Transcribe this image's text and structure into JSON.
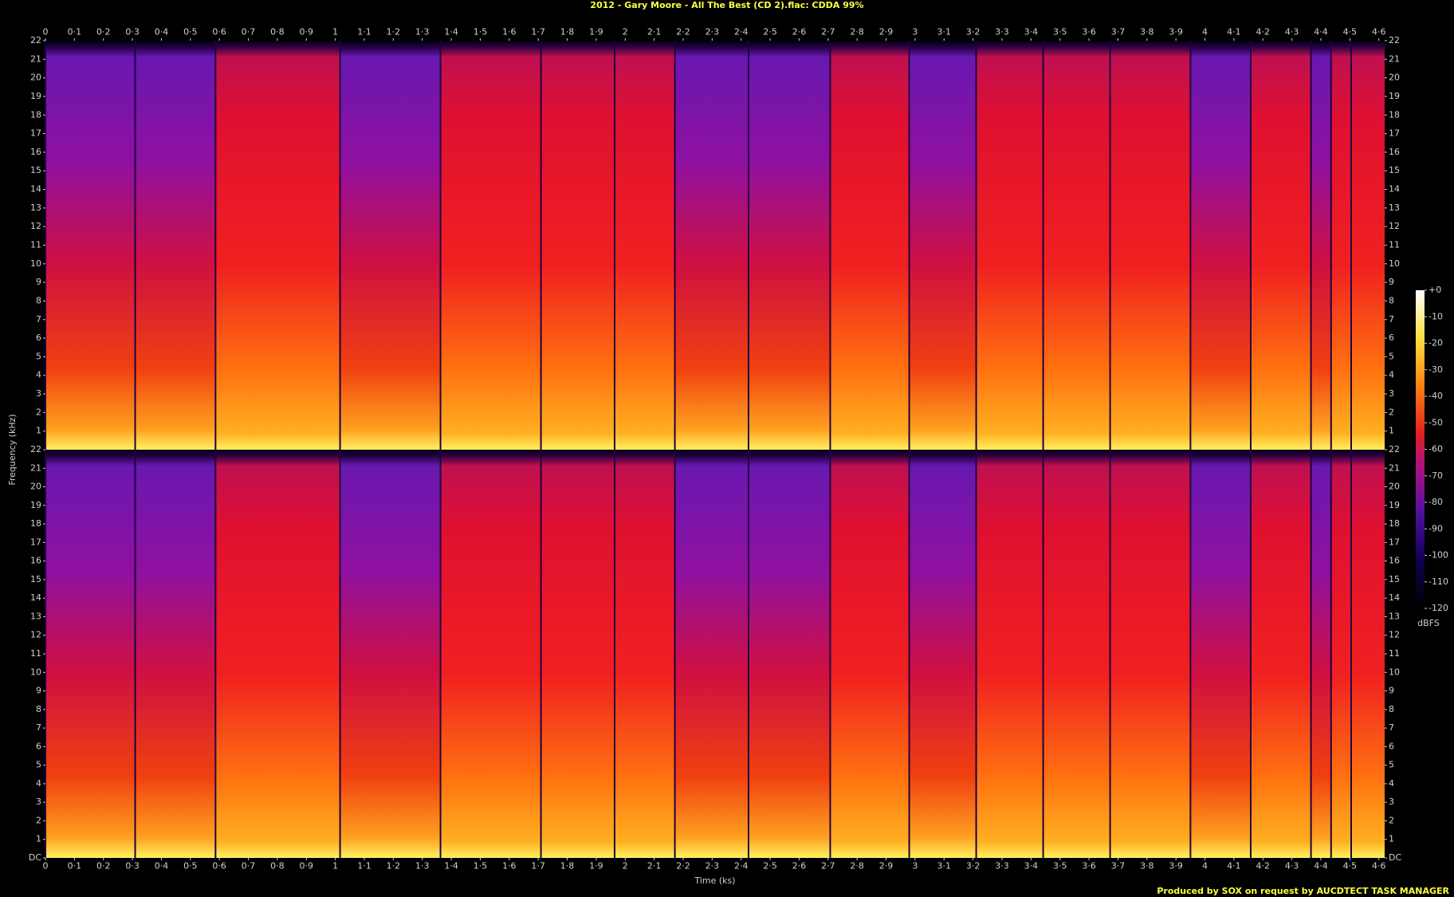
{
  "chart_data": [
    {
      "type": "spectrogram",
      "title": "2012 - Gary Moore - All The Best (CD 2).flac: CDDA 99%",
      "ylabel": "Frequency (kHz)",
      "xlim": [
        0,
        4.62
      ],
      "ylim": [
        0,
        22
      ],
      "xticks": [
        0,
        {
          "value": 0.1,
          "label": "0·1"
        },
        {
          "value": 0.2,
          "label": "0·2"
        },
        {
          "value": 0.3,
          "label": "0·3"
        },
        {
          "value": 0.4,
          "label": "0·4"
        },
        {
          "value": 0.5,
          "label": "0·5"
        },
        {
          "value": 0.6,
          "label": "0·6"
        },
        {
          "value": 0.7,
          "label": "0·7"
        },
        {
          "value": 0.8,
          "label": "0·8"
        },
        {
          "value": 0.9,
          "label": "0·9"
        },
        1,
        {
          "value": 1.1,
          "label": "1·1"
        },
        {
          "value": 1.2,
          "label": "1·2"
        },
        {
          "value": 1.3,
          "label": "1·3"
        },
        {
          "value": 1.4,
          "label": "1·4"
        },
        {
          "value": 1.5,
          "label": "1·5"
        },
        {
          "value": 1.6,
          "label": "1·6"
        },
        {
          "value": 1.7,
          "label": "1·7"
        },
        {
          "value": 1.8,
          "label": "1·8"
        },
        {
          "value": 1.9,
          "label": "1·9"
        },
        2,
        {
          "value": 2.1,
          "label": "2·1"
        },
        {
          "value": 2.2,
          "label": "2·2"
        },
        {
          "value": 2.3,
          "label": "2·3"
        },
        {
          "value": 2.4,
          "label": "2·4"
        },
        {
          "value": 2.5,
          "label": "2·5"
        },
        {
          "value": 2.6,
          "label": "2·6"
        },
        {
          "value": 2.7,
          "label": "2·7"
        },
        {
          "value": 2.8,
          "label": "2·8"
        },
        {
          "value": 2.9,
          "label": "2·9"
        },
        3,
        {
          "value": 3.1,
          "label": "3·1"
        },
        {
          "value": 3.2,
          "label": "3·2"
        },
        {
          "value": 3.3,
          "label": "3·3"
        },
        {
          "value": 3.4,
          "label": "3·4"
        },
        {
          "value": 3.5,
          "label": "3·5"
        },
        {
          "value": 3.6,
          "label": "3·6"
        },
        {
          "value": 3.7,
          "label": "3·7"
        },
        {
          "value": 3.8,
          "label": "3·8"
        },
        {
          "value": 3.9,
          "label": "3·9"
        },
        4,
        {
          "value": 4.1,
          "label": "4·1"
        },
        {
          "value": 4.2,
          "label": "4·2"
        },
        {
          "value": 4.3,
          "label": "4·3"
        },
        {
          "value": 4.4,
          "label": "4·4"
        },
        {
          "value": 4.5,
          "label": "4·5"
        },
        {
          "value": 4.6,
          "label": "4·6"
        }
      ],
      "yticks": [
        1,
        2,
        3,
        4,
        5,
        6,
        7,
        8,
        9,
        10,
        11,
        12,
        13,
        14,
        15,
        16,
        17,
        18,
        19,
        20,
        21,
        22
      ]
    },
    {
      "type": "spectrogram",
      "xlabel": "Time (ks)",
      "xlim": [
        0,
        4.62
      ],
      "ylim": [
        0,
        22
      ],
      "xticks": [
        0,
        {
          "value": 0.1,
          "label": "0·1"
        },
        {
          "value": 0.2,
          "label": "0·2"
        },
        {
          "value": 0.3,
          "label": "0·3"
        },
        {
          "value": 0.4,
          "label": "0·4"
        },
        {
          "value": 0.5,
          "label": "0·5"
        },
        {
          "value": 0.6,
          "label": "0·6"
        },
        {
          "value": 0.7,
          "label": "0·7"
        },
        {
          "value": 0.8,
          "label": "0·8"
        },
        {
          "value": 0.9,
          "label": "0·9"
        },
        1,
        {
          "value": 1.1,
          "label": "1·1"
        },
        {
          "value": 1.2,
          "label": "1·2"
        },
        {
          "value": 1.3,
          "label": "1·3"
        },
        {
          "value": 1.4,
          "label": "1·4"
        },
        {
          "value": 1.5,
          "label": "1·5"
        },
        {
          "value": 1.6,
          "label": "1·6"
        },
        {
          "value": 1.7,
          "label": "1·7"
        },
        {
          "value": 1.8,
          "label": "1·8"
        },
        {
          "value": 1.9,
          "label": "1·9"
        },
        2,
        {
          "value": 2.1,
          "label": "2·1"
        },
        {
          "value": 2.2,
          "label": "2·2"
        },
        {
          "value": 2.3,
          "label": "2·3"
        },
        {
          "value": 2.4,
          "label": "2·4"
        },
        {
          "value": 2.5,
          "label": "2·5"
        },
        {
          "value": 2.6,
          "label": "2·6"
        },
        {
          "value": 2.7,
          "label": "2·7"
        },
        {
          "value": 2.8,
          "label": "2·8"
        },
        {
          "value": 2.9,
          "label": "2·9"
        },
        3,
        {
          "value": 3.1,
          "label": "3·1"
        },
        {
          "value": 3.2,
          "label": "3·2"
        },
        {
          "value": 3.3,
          "label": "3·3"
        },
        {
          "value": 3.4,
          "label": "3·4"
        },
        {
          "value": 3.5,
          "label": "3·5"
        },
        {
          "value": 3.6,
          "label": "3·6"
        },
        {
          "value": 3.7,
          "label": "3·7"
        },
        {
          "value": 3.8,
          "label": "3·8"
        },
        {
          "value": 3.9,
          "label": "3·9"
        },
        4,
        {
          "value": 4.1,
          "label": "4·1"
        },
        {
          "value": 4.2,
          "label": "4·2"
        },
        {
          "value": 4.3,
          "label": "4·3"
        },
        {
          "value": 4.4,
          "label": "4·4"
        },
        {
          "value": 4.5,
          "label": "4·5"
        },
        {
          "value": 4.6,
          "label": "4·6"
        }
      ],
      "yticks": [
        {
          "value": 0,
          "label": "DC"
        },
        1,
        2,
        3,
        4,
        5,
        6,
        7,
        8,
        9,
        10,
        11,
        12,
        13,
        14,
        15,
        16,
        17,
        18,
        19,
        20,
        21,
        22
      ]
    }
  ],
  "colorbar": {
    "label": "dBFS",
    "lim": [
      -120,
      0
    ],
    "ticks": [
      {
        "value": 0,
        "label": "+0"
      },
      -10,
      -20,
      -30,
      -40,
      -50,
      -60,
      -70,
      -80,
      -90,
      -100,
      -110,
      -120
    ]
  },
  "footer": "Produced by SOX on request by AUCDTECT TASK MANAGER"
}
